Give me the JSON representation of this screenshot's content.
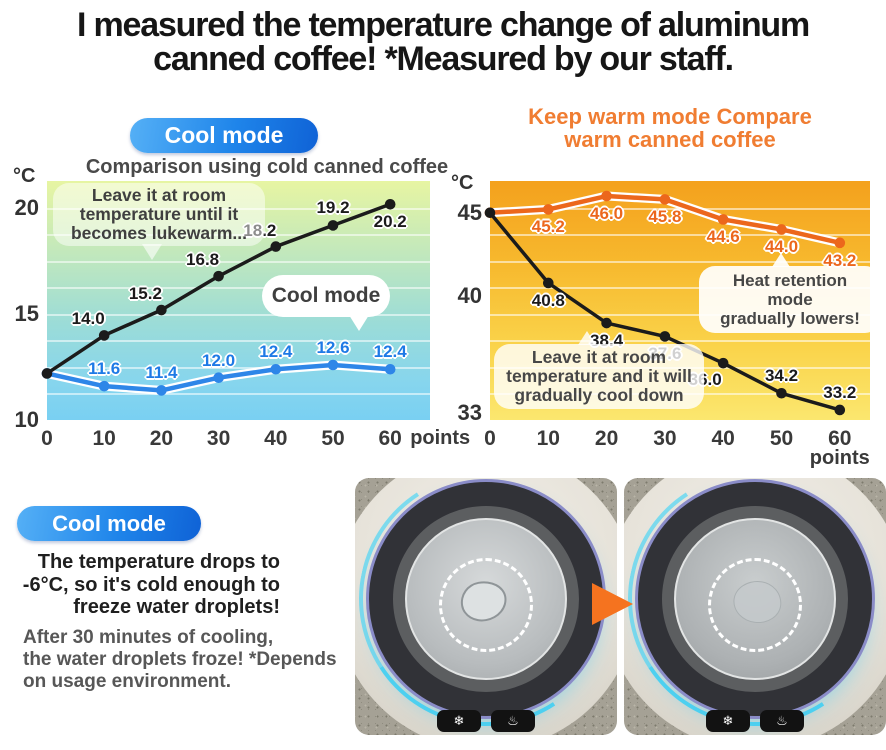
{
  "colors": {
    "badge_blue_1": "#55b0f6",
    "badge_blue_2": "#1f85ea",
    "badge_blue_3": "#0f62d6",
    "warm_title_orange": "#f07d32",
    "arrow_orange": "#f5731f",
    "cool_line_blue": "#2e86e8",
    "warm_line_orange": "#ec671c",
    "reference_line_black": "#1b1b1b"
  },
  "header": {
    "title_line1": "I measured the temperature change of aluminum",
    "title_line2": "canned coffee! *Measured by our staff."
  },
  "cool_section": {
    "badge": "Cool mode",
    "subtitle": "Comparison using cold canned coffee",
    "bubble_note": [
      "Leave it at room",
      "temperature until it",
      "becomes lukewarm..."
    ],
    "bubble_mode": "Cool mode"
  },
  "warm_section": {
    "title": [
      "Keep warm mode Compare",
      "warm canned coffee"
    ],
    "bubble_heat": [
      "Heat retention",
      "mode",
      "gradually lowers!"
    ],
    "bubble_leave": [
      "Leave it at room",
      "temperature and it  will",
      "gradually cool down"
    ]
  },
  "chart_data": [
    {
      "id": "cool-mode-chart",
      "type": "line",
      "title": "Comparison using cold canned coffee",
      "unit": "°C",
      "x": [
        0,
        10,
        20,
        30,
        40,
        50,
        60
      ],
      "xtick_labels": [
        "0",
        "10",
        "20",
        "30",
        "40",
        "50",
        "60"
      ],
      "x_unit": "points",
      "x_unit_position": "right",
      "yticks": [
        20,
        15,
        10
      ],
      "ylim": [
        10,
        21.3
      ],
      "grid": true,
      "legend": "none",
      "series": [
        {
          "name": "cool-mode",
          "color": "#2e86e8",
          "label_color": "#1e7ae6",
          "casing": true,
          "values": [
            12.2,
            11.6,
            11.4,
            12.0,
            12.4,
            12.6,
            12.4
          ],
          "labels": [
            "",
            "11.6",
            "11.4",
            "12.0",
            "12.4",
            "12.6",
            "12.4"
          ],
          "label_side": [
            "none",
            "above",
            "above",
            "above",
            "above",
            "above",
            "above"
          ]
        },
        {
          "name": "room-temperature",
          "color": "#1b1b1b",
          "label_color": "#1b1b1b",
          "casing": false,
          "values": [
            12.2,
            14.0,
            15.2,
            16.8,
            18.2,
            19.2,
            20.2
          ],
          "labels": [
            "",
            "14.0",
            "15.2",
            "16.8",
            "18.2",
            "19.2",
            "20.2"
          ],
          "label_side": [
            "none",
            "above-left",
            "above-left",
            "above-left",
            "above-left",
            "above",
            "below"
          ]
        }
      ]
    },
    {
      "id": "keep-warm-chart",
      "type": "line",
      "title": "Keep warm mode Compare warm canned coffee",
      "unit": "°C",
      "x": [
        0,
        10,
        20,
        30,
        40,
        50,
        60
      ],
      "xtick_labels": [
        "0",
        "10",
        "20",
        "30",
        "40",
        "50",
        "60"
      ],
      "x_unit": "points",
      "x_unit_position": "below",
      "yticks": [
        45,
        40,
        33
      ],
      "ylim": [
        32.6,
        46.9
      ],
      "grid": true,
      "legend": "none",
      "series": [
        {
          "name": "keep-warm-mode",
          "color": "#ec671c",
          "label_color": "#ec671c",
          "casing": true,
          "values": [
            45.0,
            45.2,
            46.0,
            45.8,
            44.6,
            44.0,
            43.2
          ],
          "labels": [
            "",
            "45.2",
            "46.0",
            "45.8",
            "44.6",
            "44.0",
            "43.2"
          ],
          "label_side": [
            "none",
            "below",
            "below",
            "below",
            "below",
            "below",
            "below"
          ]
        },
        {
          "name": "room-temperature",
          "color": "#1b1b1b",
          "label_color": "#1b1b1b",
          "casing": false,
          "values": [
            45.0,
            40.8,
            38.4,
            37.6,
            36.0,
            34.2,
            33.2
          ],
          "labels": [
            "",
            "40.8",
            "38.4",
            "37.6",
            "36.0",
            "34.2",
            "33.2"
          ],
          "label_side": [
            "none",
            "below",
            "below",
            "below",
            "below-left",
            "above",
            "above"
          ]
        }
      ]
    }
  ],
  "bottom": {
    "badge": "Cool mode",
    "headline": [
      "The temperature drops to",
      "-6°C, so it's cold enough to",
      "freeze water droplets!"
    ],
    "note": [
      "After 30 minutes of cooling,",
      "the water droplets froze! *Depends",
      "on usage environment."
    ],
    "icons": {
      "cool_button": "❄",
      "heat_button": "♨"
    }
  }
}
